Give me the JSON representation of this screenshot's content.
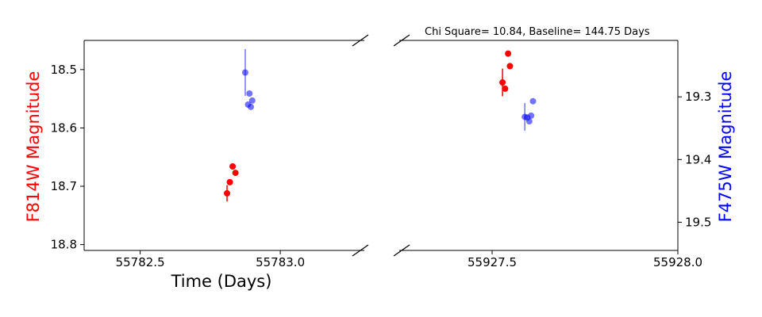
{
  "chart_data": {
    "type": "scatter",
    "title": "Chi Square= 10.84, Baseline= 144.75 Days",
    "xlabel": "Time (Days)",
    "ylabel_left": "F814W Magnitude",
    "ylabel_right": "F475W Magnitude",
    "colors": {
      "F814W": "#ff0000",
      "F475W": "#0000ff"
    },
    "grid": false,
    "panels": [
      {
        "xlim": [
          55782.3,
          55783.3
        ],
        "xticks": [
          55782.5,
          55783.0
        ],
        "xtick_labels": [
          "55782.5",
          "55783.0"
        ]
      },
      {
        "xlim": [
          55927.25,
          55928.0
        ],
        "xticks": [
          55927.5,
          55928.0
        ],
        "xtick_labels": [
          "55927.5",
          "55928.0"
        ]
      }
    ],
    "y_left": {
      "lim": [
        18.81,
        18.45
      ],
      "ticks": [
        18.5,
        18.6,
        18.7,
        18.8
      ],
      "tick_labels": [
        "18.5",
        "18.6",
        "18.7",
        "18.8"
      ]
    },
    "y_right": {
      "lim": [
        19.545,
        19.21
      ],
      "ticks": [
        19.3,
        19.4,
        19.5
      ],
      "tick_labels": [
        "19.3",
        "19.4",
        "19.5"
      ]
    },
    "series": [
      {
        "name": "F814W",
        "axis": "left",
        "points": [
          {
            "x": 55782.81,
            "y": 18.712,
            "err": 0.014
          },
          {
            "x": 55782.82,
            "y": 18.693,
            "err": 0.0
          },
          {
            "x": 55782.83,
            "y": 18.666,
            "err": 0.0
          },
          {
            "x": 55782.84,
            "y": 18.677,
            "err": 0.0
          }
        ]
      },
      {
        "name": "F814W",
        "axis": "right",
        "points": [
          {
            "x": 55927.528,
            "y": 19.277,
            "err": 0.022
          },
          {
            "x": 55927.535,
            "y": 19.287,
            "err": 0.0
          },
          {
            "x": 55927.543,
            "y": 19.231,
            "err": 0.0
          },
          {
            "x": 55927.548,
            "y": 19.251,
            "err": 0.0
          }
        ]
      },
      {
        "name": "F475W",
        "axis": "left",
        "points": [
          {
            "x": 55782.875,
            "y": 18.505,
            "err": 0.04
          },
          {
            "x": 55782.885,
            "y": 18.56,
            "err": 0.0
          },
          {
            "x": 55782.89,
            "y": 18.541,
            "err": 0.0
          },
          {
            "x": 55782.895,
            "y": 18.564,
            "err": 0.0
          },
          {
            "x": 55782.9,
            "y": 18.553,
            "err": 0.0
          }
        ]
      },
      {
        "name": "F475W",
        "axis": "right",
        "points": [
          {
            "x": 55927.588,
            "y": 19.332,
            "err": 0.022
          },
          {
            "x": 55927.595,
            "y": 19.333,
            "err": 0.0
          },
          {
            "x": 55927.6,
            "y": 19.339,
            "err": 0.0
          },
          {
            "x": 55927.605,
            "y": 19.33,
            "err": 0.0
          },
          {
            "x": 55927.61,
            "y": 19.307,
            "err": 0.0
          }
        ]
      }
    ]
  }
}
